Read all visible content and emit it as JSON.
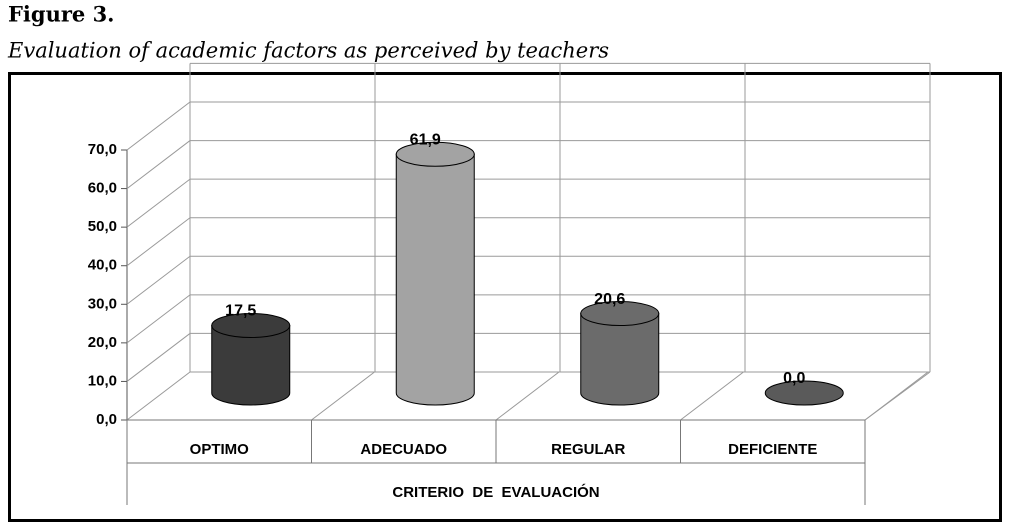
{
  "chart_data": {
    "type": "bar3d",
    "title": "Figure 3.",
    "subtitle": "Evaluation of academic factors as perceived by teachers",
    "x_label": "CRITERIO  DE  EVALUACIÓN",
    "categories": [
      "OPTIMO",
      "ADECUADO",
      "REGULAR",
      "DEFICIENTE"
    ],
    "values": [
      17.5,
      61.9,
      20.6,
      0.0
    ],
    "value_labels": [
      "17,5",
      "61,9",
      "20,6",
      "0,0"
    ],
    "colors": [
      "#3b3b3b",
      "#a3a3a3",
      "#6b6b6b",
      "#5a5a5a"
    ],
    "ylim": [
      0,
      80
    ],
    "yticks": [
      {
        "value": 0,
        "label": "0,0"
      },
      {
        "value": 10,
        "label": "10,0"
      },
      {
        "value": 20,
        "label": "20,0"
      },
      {
        "value": 30,
        "label": "30,0"
      },
      {
        "value": 40,
        "label": "40,0"
      },
      {
        "value": 50,
        "label": "50,0"
      },
      {
        "value": 60,
        "label": "60,0"
      },
      {
        "value": 70,
        "label": "70,0"
      }
    ],
    "grid": true
  }
}
